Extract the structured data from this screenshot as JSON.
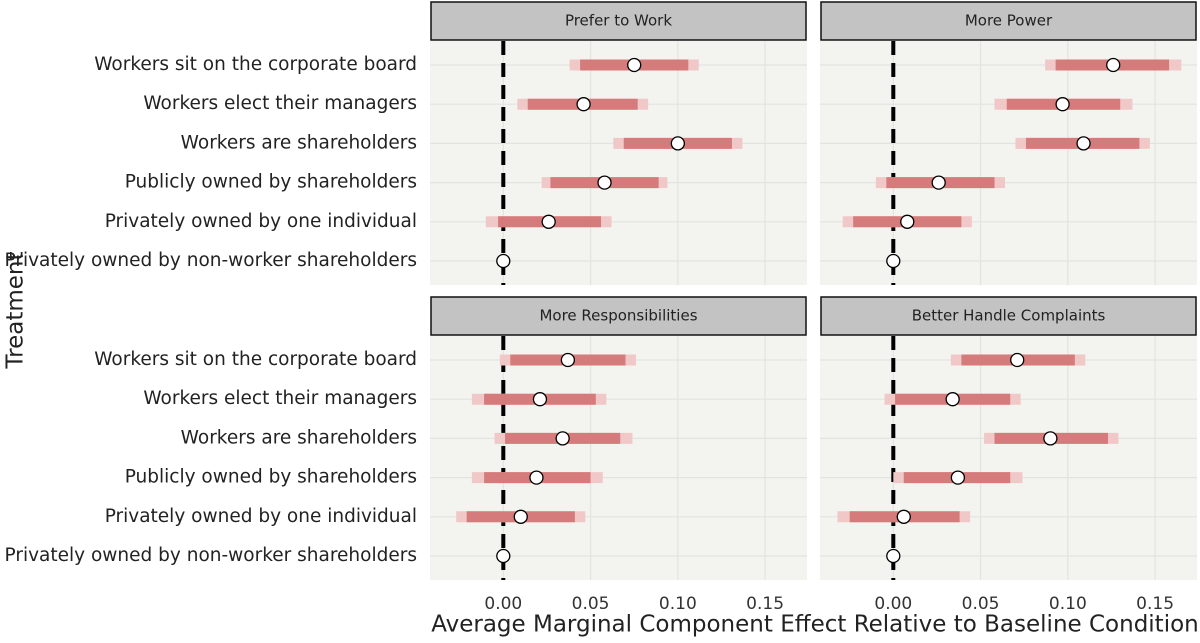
{
  "chart_data": {
    "type": "facet-dotplot",
    "y_label": "Treatment",
    "x_label": "Average Marginal Component Effect Relative to Baseline Condition",
    "categories": [
      "Workers sit on the corporate board",
      "Workers elect their managers",
      "Workers are shareholders",
      "Publicly owned by shareholders",
      "Privately owned by one individual",
      "Privately owned by non-worker shareholders"
    ],
    "xlim": [
      -0.042,
      0.174
    ],
    "xticks": [
      {
        "value": 0,
        "label": "0.00"
      },
      0.05,
      {
        "value": 0.1,
        "label": "0.10"
      },
      0.15
    ],
    "reference_line": 0,
    "grid": true,
    "colors": {
      "inner": "#d67b7b",
      "outer": "#f1c8c8",
      "point": "#ffffff"
    },
    "panels": [
      {
        "title": "Prefer to Work",
        "values": [
          0.075,
          0.046,
          0.1,
          0.058,
          0.026,
          0
        ],
        "ci_inner": [
          [
            0.044,
            0.106
          ],
          [
            0.014,
            0.077
          ],
          [
            0.069,
            0.131
          ],
          [
            0.027,
            0.089
          ],
          [
            -0.003,
            0.056
          ],
          null
        ],
        "ci_outer": [
          [
            0.038,
            0.112
          ],
          [
            0.008,
            0.083
          ],
          [
            0.063,
            0.137
          ],
          [
            0.022,
            0.094
          ],
          [
            -0.01,
            0.062
          ],
          null
        ]
      },
      {
        "title": "More Power",
        "values": [
          0.126,
          0.097,
          0.109,
          0.026,
          0.008,
          0
        ],
        "ci_inner": [
          [
            0.093,
            0.158
          ],
          [
            0.065,
            0.13
          ],
          [
            0.076,
            0.141
          ],
          [
            -0.004,
            0.058
          ],
          [
            -0.023,
            0.039
          ],
          null
        ],
        "ci_outer": [
          [
            0.087,
            0.165
          ],
          [
            0.058,
            0.137
          ],
          [
            0.07,
            0.147
          ],
          [
            -0.01,
            0.064
          ],
          [
            -0.029,
            0.045
          ],
          null
        ]
      },
      {
        "title": "More Responsibilities",
        "values": [
          0.037,
          0.021,
          0.034,
          0.019,
          0.01,
          0
        ],
        "ci_inner": [
          [
            0.004,
            0.07
          ],
          [
            -0.011,
            0.053
          ],
          [
            0.001,
            0.067
          ],
          [
            -0.011,
            0.05
          ],
          [
            -0.021,
            0.041
          ],
          null
        ],
        "ci_outer": [
          [
            -0.002,
            0.076
          ],
          [
            -0.018,
            0.059
          ],
          [
            -0.005,
            0.074
          ],
          [
            -0.018,
            0.057
          ],
          [
            -0.027,
            0.047
          ],
          null
        ]
      },
      {
        "title": "Better Handle Complaints",
        "values": [
          0.071,
          0.034,
          0.09,
          0.037,
          0.006,
          0
        ],
        "ci_inner": [
          [
            0.039,
            0.104
          ],
          [
            0.001,
            0.067
          ],
          [
            0.058,
            0.123
          ],
          [
            0.006,
            0.067
          ],
          [
            -0.025,
            0.038
          ],
          null
        ],
        "ci_outer": [
          [
            0.033,
            0.11
          ],
          [
            -0.005,
            0.073
          ],
          [
            0.052,
            0.129
          ],
          [
            0,
            0.074
          ],
          [
            -0.032,
            0.044
          ],
          null
        ]
      }
    ]
  }
}
